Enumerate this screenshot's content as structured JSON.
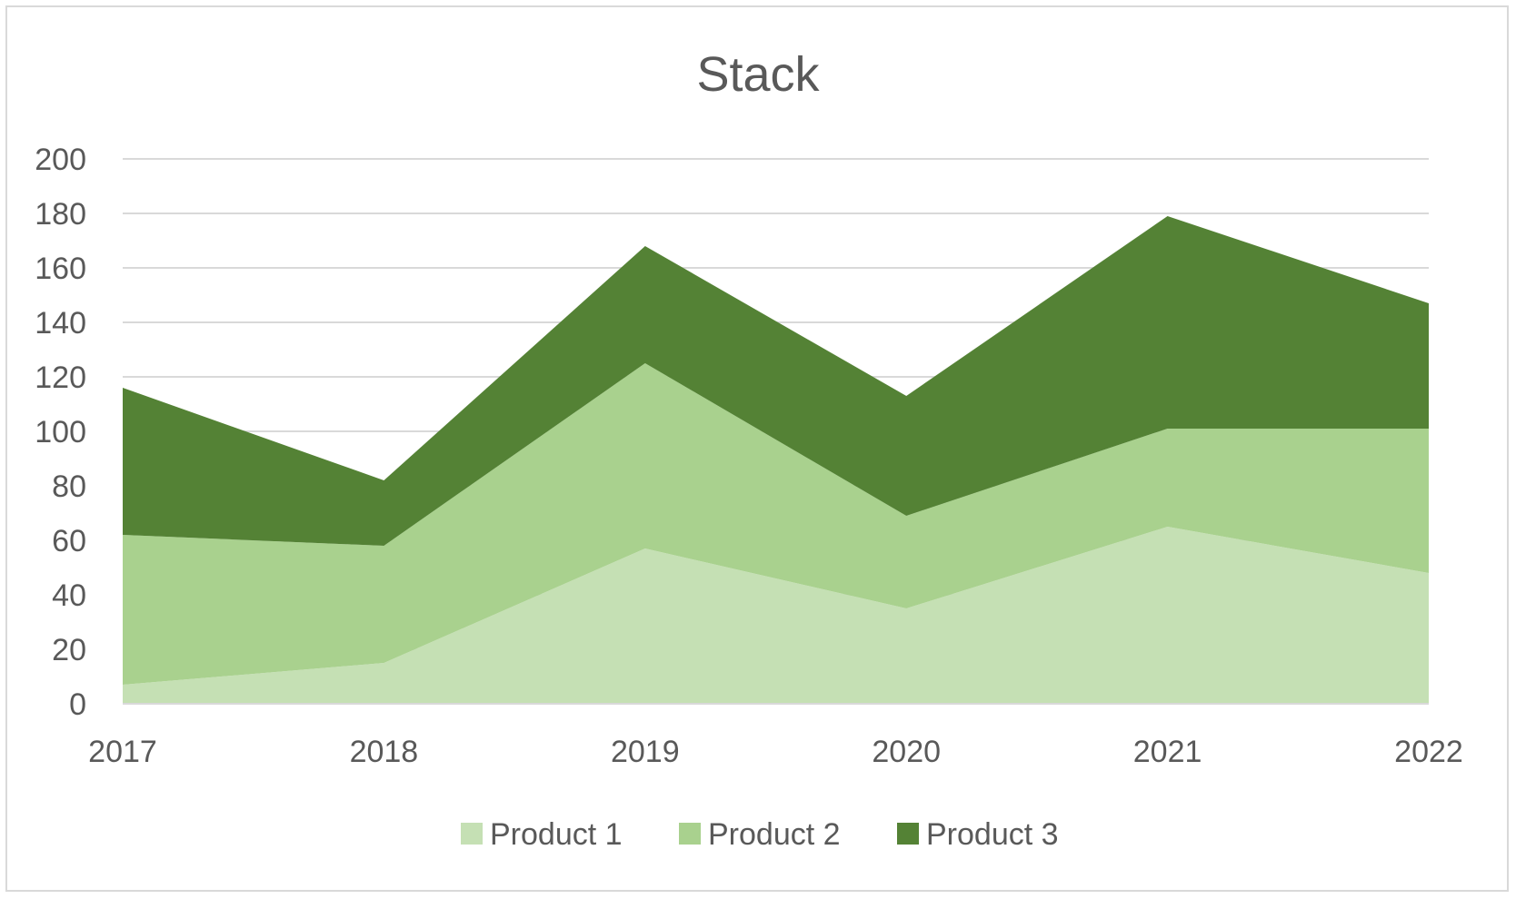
{
  "chart_data": {
    "type": "area",
    "stacked": true,
    "title": "Stack",
    "xlabel": "",
    "ylabel": "",
    "categories": [
      "2017",
      "2018",
      "2019",
      "2020",
      "2021",
      "2022"
    ],
    "ylim": [
      0,
      200
    ],
    "yticks": [
      "0",
      "20",
      "40",
      "60",
      "80",
      "100",
      "120",
      "140",
      "160",
      "180",
      "200"
    ],
    "grid": true,
    "legend": "bottom",
    "series": [
      {
        "name": "Product 1",
        "values": [
          7,
          15,
          57,
          35,
          65,
          48
        ],
        "color": "#c5e0b4"
      },
      {
        "name": "Product 2",
        "values": [
          55,
          43,
          68,
          34,
          36,
          53
        ],
        "color": "#a9d18e"
      },
      {
        "name": "Product 3",
        "values": [
          54,
          24,
          43,
          44,
          78,
          46
        ],
        "color": "#548235"
      }
    ]
  }
}
